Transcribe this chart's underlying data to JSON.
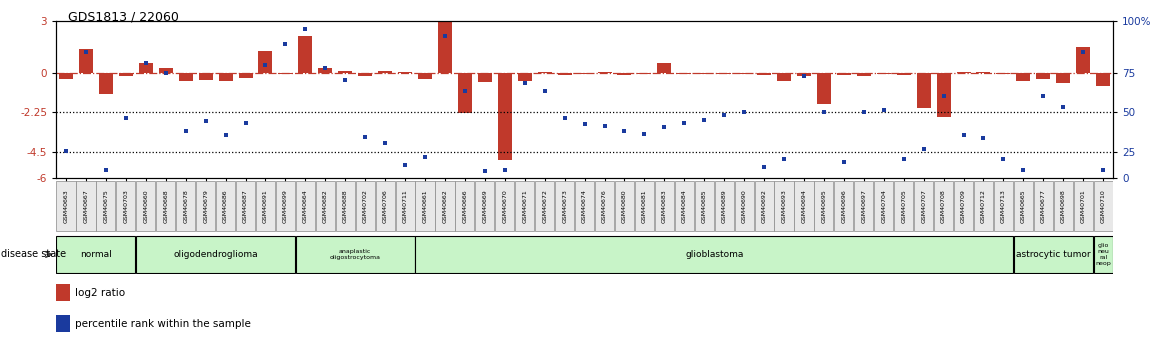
{
  "title": "GDS1813 / 22060",
  "samples": [
    "GSM40663",
    "GSM40667",
    "GSM40675",
    "GSM40703",
    "GSM40660",
    "GSM40668",
    "GSM40678",
    "GSM40679",
    "GSM40686",
    "GSM40687",
    "GSM40691",
    "GSM40699",
    "GSM40664",
    "GSM40682",
    "GSM40688",
    "GSM40702",
    "GSM40706",
    "GSM40711",
    "GSM40661",
    "GSM40662",
    "GSM40666",
    "GSM40669",
    "GSM40670",
    "GSM40671",
    "GSM40672",
    "GSM40673",
    "GSM40674",
    "GSM40676",
    "GSM40680",
    "GSM40681",
    "GSM40683",
    "GSM40684",
    "GSM40685",
    "GSM40689",
    "GSM40690",
    "GSM40692",
    "GSM40693",
    "GSM40694",
    "GSM40695",
    "GSM40696",
    "GSM40697",
    "GSM40704",
    "GSM40705",
    "GSM40707",
    "GSM40708",
    "GSM40709",
    "GSM40712",
    "GSM40713",
    "GSM40665",
    "GSM40677",
    "GSM40698",
    "GSM40701",
    "GSM40710"
  ],
  "log2_ratio": [
    -0.35,
    1.4,
    -1.2,
    -0.15,
    0.55,
    0.28,
    -0.45,
    -0.38,
    -0.45,
    -0.28,
    1.25,
    -0.05,
    2.1,
    0.28,
    0.12,
    -0.15,
    0.1,
    0.07,
    -0.35,
    2.9,
    -2.3,
    -0.5,
    -5.0,
    -0.45,
    0.07,
    -0.12,
    -0.07,
    0.04,
    -0.1,
    -0.07,
    0.55,
    -0.08,
    -0.08,
    -0.06,
    -0.08,
    -0.1,
    -0.45,
    -0.18,
    -1.8,
    -0.12,
    -0.18,
    -0.08,
    -0.12,
    -2.0,
    -2.5,
    0.04,
    0.04,
    -0.06,
    -0.45,
    -0.35,
    -0.55,
    1.5,
    -0.75
  ],
  "percentile": [
    17,
    80,
    5,
    38,
    73,
    67,
    30,
    36,
    27,
    35,
    72,
    85,
    95,
    70,
    62,
    26,
    22,
    8,
    13,
    90,
    55,
    4,
    5,
    60,
    55,
    38,
    34,
    33,
    30,
    28,
    32,
    35,
    37,
    40,
    42,
    7,
    12,
    65,
    42,
    10,
    42,
    43,
    12,
    18,
    52,
    27,
    25,
    12,
    5,
    52,
    45,
    80,
    5
  ],
  "groups": [
    {
      "label": "normal",
      "start": 0,
      "end": 4
    },
    {
      "label": "oligodendroglioma",
      "start": 4,
      "end": 12
    },
    {
      "label": "anaplastic\noligostrocytoma",
      "start": 12,
      "end": 18
    },
    {
      "label": "glioblastoma",
      "start": 18,
      "end": 48
    },
    {
      "label": "astrocytic tumor",
      "start": 48,
      "end": 52
    },
    {
      "label": "glio\nneu\nral\nneop",
      "start": 52,
      "end": 53
    }
  ],
  "ylim_min": -6,
  "ylim_max": 3,
  "yticks_left": [
    -6,
    -4.5,
    -2.25,
    0,
    3
  ],
  "ytick_labels_left": [
    "-6",
    "-4.5",
    "-2.25",
    "0",
    "3"
  ],
  "ytick_labels_right": [
    "0",
    "25",
    "50",
    "75",
    "100%"
  ],
  "hline_dotted1": -2.25,
  "hline_dotted2": -4.5,
  "bar_color": "#c0392b",
  "dot_color": "#1a3a9e",
  "group_color": "#c8f4c8",
  "bar_width": 0.7
}
